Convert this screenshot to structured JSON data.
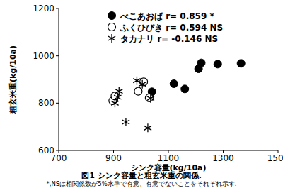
{
  "chart_data": {
    "type": "scatter",
    "title": "図1 シンク容量と粗玄米重の関係.",
    "annotations": [
      "*,NSは相関係数が5%水準で有意、有意でないことをそれぞれ示す."
    ],
    "x_label": "シンク容量(kg/10a)",
    "y_label": "粗玄米重(kg/10a)",
    "xlim": [
      700,
      1500
    ],
    "xticks": [
      700,
      900,
      1100,
      1300,
      1500
    ],
    "ylim": [
      600,
      1200
    ],
    "yticks": [
      600,
      800,
      1000,
      1200
    ],
    "grid": false,
    "legend": "upper left",
    "series": [
      {
        "name": "べこあおば r= 0.859 *",
        "color": "#000000",
        "marker": "circle",
        "x": [
          1040,
          1120,
          1160,
          1210,
          1220,
          1280,
          1365
        ],
        "values": [
          848,
          882,
          860,
          945,
          970,
          965,
          968
        ]
      },
      {
        "name": "ふくひびき r= 0.594 NS",
        "color": "#000000",
        "marker": "open-circle",
        "x": [
          897,
          905,
          990,
          1010,
          1030
        ],
        "values": [
          810,
          830,
          850,
          890,
          822
        ]
      },
      {
        "name": "タカナリ r= -0.146 NS",
        "color": "#000000",
        "marker": "asterisk",
        "x": [
          905,
          915,
          920,
          945,
          985,
          1005,
          1035,
          1025
        ],
        "values": [
          800,
          825,
          850,
          720,
          895,
          880,
          820,
          695
        ]
      }
    ]
  }
}
